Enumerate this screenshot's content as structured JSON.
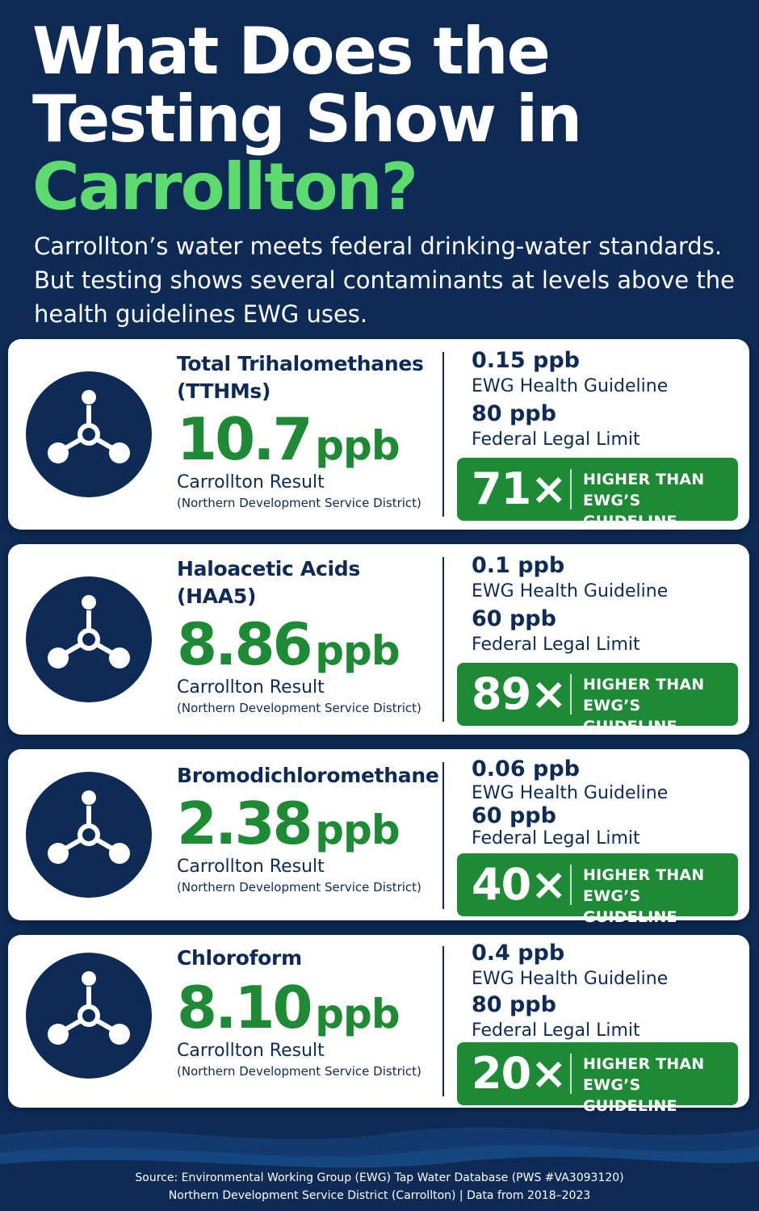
{
  "title": {
    "line1": "What Does the",
    "line2": "Testing Show in",
    "highlight": "Carrollton?"
  },
  "intro": "Carrollton’s water meets federal drinking-water standards. But testing shows several contaminants at levels above the health guidelines EWG uses.",
  "colors": {
    "background": "#0d2b55",
    "accent_green": "#5edb6e",
    "result_green": "#1e8a35",
    "card": "#ffffff"
  },
  "icon_name": "molecule-icon",
  "contaminants": [
    {
      "name_line1": "Total Trihalomethanes",
      "name_line2": "(TTHMs)",
      "result_value": "10.7",
      "result_unit": "ppb",
      "result_label": "Carrollton Result",
      "result_sub": "(Northern Development Service District)",
      "guideline_value": "0.15 ppb",
      "guideline_label": "EWG Health Guideline",
      "limit_value": "80 ppb",
      "limit_label": "Federal Legal Limit",
      "multiplier": "71×",
      "badge_line1": "HIGHER THAN",
      "badge_line2": "EWG’S GUIDELINE"
    },
    {
      "name_line1": "Haloacetic Acids",
      "name_line2": "(HAA5)",
      "result_value": "8.86",
      "result_unit": "ppb",
      "result_label": "Carrollton Result",
      "result_sub": "(Northern Development Service District)",
      "guideline_value": "0.1 ppb",
      "guideline_label": "EWG Health Guideline",
      "limit_value": "60 ppb",
      "limit_label": "Federal Legal Limit",
      "multiplier": "89×",
      "badge_line1": "HIGHER THAN",
      "badge_line2": "EWG’S GUIDELINE"
    },
    {
      "name_line1": "Bromodichloromethane",
      "name_line2": "",
      "result_value": "2.38",
      "result_unit": "ppb",
      "result_label": "Carrollton Result",
      "result_sub": "(Northern Development Service District)",
      "guideline_value": "0.06 ppb",
      "guideline_label": "EWG Health Guideline",
      "limit_value": "60 ppb",
      "limit_label": "Federal Legal Limit",
      "multiplier": "40×",
      "badge_line1": "HIGHER THAN",
      "badge_line2": "EWG’S GUIDELINE"
    },
    {
      "name_line1": "Chloroform",
      "name_line2": "",
      "result_value": "8.10",
      "result_unit": "ppb",
      "result_label": "Carrollton Result",
      "result_sub": "(Northern Development Service District)",
      "guideline_value": "0.4 ppb",
      "guideline_label": "EWG Health Guideline",
      "limit_value": "80 ppb",
      "limit_label": "Federal Legal Limit",
      "multiplier": "20×",
      "badge_line1": "HIGHER THAN",
      "badge_line2": "EWG’S GUIDELINE"
    }
  ],
  "source": {
    "line1": "Source: Environmental Working Group (EWG) Tap Water Database (PWS #VA3093120)",
    "line2": "Northern Development Service District (Carrollton) | Data from 2018–2023"
  }
}
